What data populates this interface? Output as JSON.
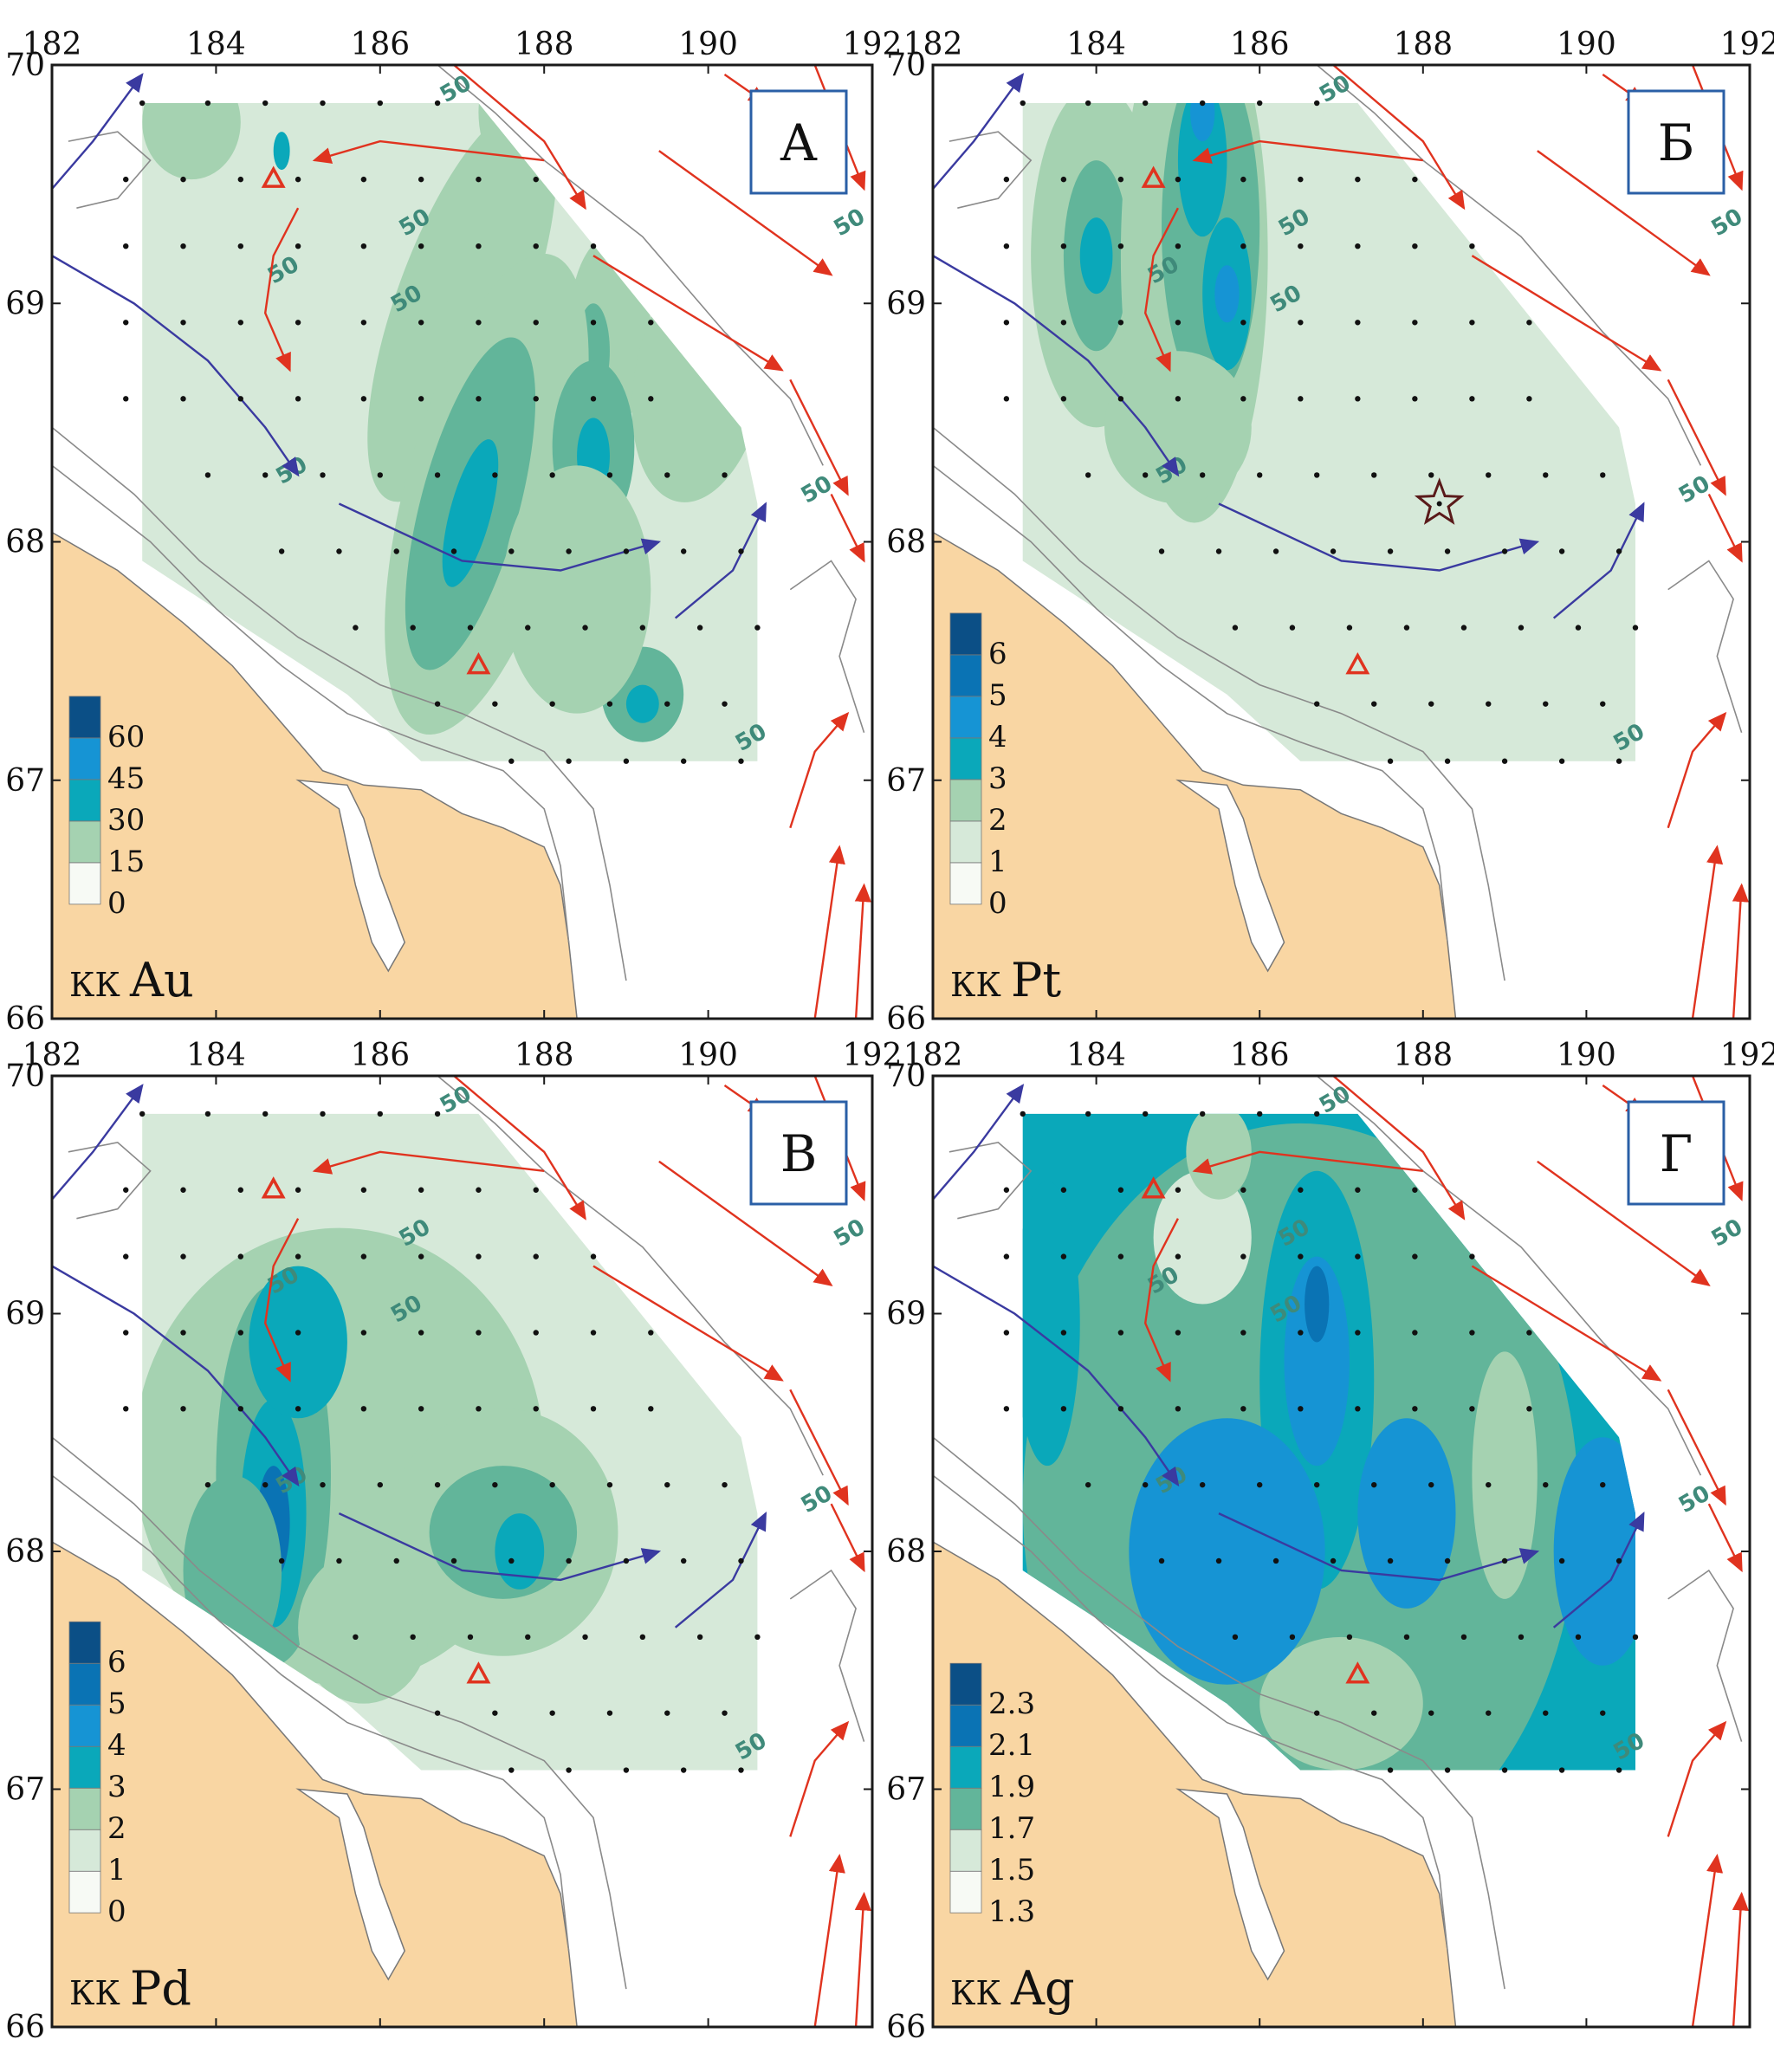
{
  "figure": {
    "x_ticks": [
      "182",
      "184",
      "186",
      "188",
      "190",
      "192"
    ],
    "y_ticks": [
      "66",
      "67",
      "68",
      "69",
      "70"
    ],
    "colors": {
      "land": "#f9d6a3",
      "sea": "#ffffff",
      "frame": "#1a1a1a",
      "current_warm": "#e0331f",
      "current_cold": "#3a3aa0",
      "station": "#111111",
      "triangle": "#e0331f",
      "label_box_border": "#2a5fa6"
    },
    "scale_colors": [
      "#f7faf5",
      "#d6e9d9",
      "#a5d2b1",
      "#62b59a",
      "#0aa8ba",
      "#1694d4",
      "#0a73b4",
      "#0b4f86"
    ]
  },
  "panels": [
    {
      "letter": "А",
      "legend_kk": "КК",
      "legend_element": "Au",
      "legend_values": [
        "0",
        "15",
        "30",
        "45",
        "60"
      ],
      "has_star": false
    },
    {
      "letter": "Б",
      "legend_kk": "КК",
      "legend_element": "Pt",
      "legend_values": [
        "0",
        "1",
        "2",
        "3",
        "4",
        "5",
        "6"
      ],
      "has_star": true
    },
    {
      "letter": "В",
      "legend_kk": "КК",
      "legend_element": "Pd",
      "legend_values": [
        "0",
        "1",
        "2",
        "3",
        "4",
        "5",
        "6"
      ],
      "has_star": false
    },
    {
      "letter": "Г",
      "legend_kk": "КК",
      "legend_element": "Ag",
      "legend_values": [
        "1.3",
        "1.5",
        "1.7",
        "1.9",
        "2.1",
        "2.3"
      ],
      "has_star": false
    }
  ],
  "iso_label": "50"
}
